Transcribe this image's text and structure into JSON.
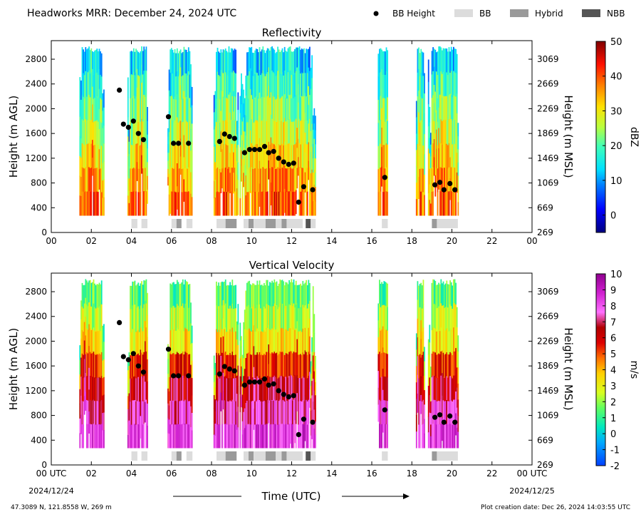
{
  "header": {
    "title": "Headworks MRR:  December 24, 2024 UTC",
    "legend": [
      {
        "label": "BB Height",
        "kind": "dot",
        "color": "#000000"
      },
      {
        "label": "BB",
        "kind": "swatch",
        "color": "#dcdcdc"
      },
      {
        "label": "Hybrid",
        "kind": "swatch",
        "color": "#9a9a9a"
      },
      {
        "label": "NBB",
        "kind": "swatch",
        "color": "#555555"
      }
    ]
  },
  "footer": {
    "location": "47.3089 N, 121.8558 W, 269 m",
    "created": "Plot creation date: Dec 26, 2024 14:03:55 UTC",
    "xlabel": "Time (UTC)",
    "start_date": "2024/12/24",
    "end_date": "2024/12/25"
  },
  "chart_data": [
    {
      "type": "heatmap",
      "title": "Reflectivity",
      "ylabel": "Height (m AGL)",
      "ylabel_right": "Height (m MSL)",
      "xlim": [
        0,
        24
      ],
      "ylim": [
        0,
        3100
      ],
      "x_ticks": [
        "00",
        "02",
        "04",
        "06",
        "08",
        "10",
        "12",
        "14",
        "16",
        "18",
        "20",
        "22",
        "00"
      ],
      "y_ticks": [
        0,
        400,
        800,
        1200,
        1600,
        2000,
        2400,
        2800
      ],
      "y_ticks_right": [
        269,
        669,
        1069,
        1469,
        1869,
        2269,
        2669,
        3069
      ],
      "colorbar": {
        "label": "dBZ",
        "min": -5,
        "max": 50,
        "ticks": [
          0,
          10,
          20,
          30,
          40,
          50
        ]
      },
      "echo_periods": [
        [
          1.4,
          2.6
        ],
        [
          3.8,
          4.8
        ],
        [
          5.8,
          7.0
        ],
        [
          8.1,
          9.3
        ],
        [
          9.4,
          13.2
        ],
        [
          16.3,
          16.8
        ],
        [
          18.2,
          18.6
        ],
        [
          18.8,
          20.3
        ]
      ],
      "bb_height": [
        {
          "x": 3.4,
          "y": 2300
        },
        {
          "x": 3.6,
          "y": 1750
        },
        {
          "x": 3.85,
          "y": 1700
        },
        {
          "x": 4.1,
          "y": 1800
        },
        {
          "x": 4.35,
          "y": 1600
        },
        {
          "x": 4.6,
          "y": 1500
        },
        {
          "x": 5.85,
          "y": 1870
        },
        {
          "x": 6.1,
          "y": 1440
        },
        {
          "x": 6.35,
          "y": 1440
        },
        {
          "x": 6.85,
          "y": 1440
        },
        {
          "x": 8.4,
          "y": 1470
        },
        {
          "x": 8.65,
          "y": 1590
        },
        {
          "x": 8.9,
          "y": 1550
        },
        {
          "x": 9.15,
          "y": 1520
        },
        {
          "x": 9.65,
          "y": 1290
        },
        {
          "x": 9.9,
          "y": 1340
        },
        {
          "x": 10.15,
          "y": 1340
        },
        {
          "x": 10.4,
          "y": 1340
        },
        {
          "x": 10.65,
          "y": 1390
        },
        {
          "x": 10.85,
          "y": 1290
        },
        {
          "x": 11.1,
          "y": 1310
        },
        {
          "x": 11.35,
          "y": 1200
        },
        {
          "x": 11.6,
          "y": 1140
        },
        {
          "x": 11.85,
          "y": 1100
        },
        {
          "x": 12.1,
          "y": 1120
        },
        {
          "x": 12.35,
          "y": 490
        },
        {
          "x": 12.6,
          "y": 740
        },
        {
          "x": 13.05,
          "y": 690
        },
        {
          "x": 16.65,
          "y": 890
        },
        {
          "x": 19.15,
          "y": 770
        },
        {
          "x": 19.4,
          "y": 810
        },
        {
          "x": 19.6,
          "y": 690
        },
        {
          "x": 19.9,
          "y": 790
        },
        {
          "x": 20.15,
          "y": 690
        }
      ],
      "bb_type": [
        {
          "start": 4.0,
          "end": 4.3,
          "kind": "BB"
        },
        {
          "start": 4.5,
          "end": 4.8,
          "kind": "BB"
        },
        {
          "start": 6.0,
          "end": 6.25,
          "kind": "BB"
        },
        {
          "start": 6.25,
          "end": 6.5,
          "kind": "Hybrid"
        },
        {
          "start": 6.75,
          "end": 7.05,
          "kind": "BB"
        },
        {
          "start": 8.25,
          "end": 8.7,
          "kind": "BB"
        },
        {
          "start": 8.7,
          "end": 9.25,
          "kind": "Hybrid"
        },
        {
          "start": 9.6,
          "end": 9.85,
          "kind": "BB"
        },
        {
          "start": 9.85,
          "end": 10.1,
          "kind": "Hybrid"
        },
        {
          "start": 10.1,
          "end": 10.7,
          "kind": "BB"
        },
        {
          "start": 10.7,
          "end": 11.2,
          "kind": "Hybrid"
        },
        {
          "start": 11.2,
          "end": 11.5,
          "kind": "BB"
        },
        {
          "start": 11.5,
          "end": 11.75,
          "kind": "Hybrid"
        },
        {
          "start": 11.75,
          "end": 12.55,
          "kind": "BB"
        },
        {
          "start": 12.7,
          "end": 12.95,
          "kind": "NBB"
        },
        {
          "start": 12.95,
          "end": 13.2,
          "kind": "BB"
        },
        {
          "start": 16.5,
          "end": 16.8,
          "kind": "BB"
        },
        {
          "start": 19.0,
          "end": 19.25,
          "kind": "Hybrid"
        },
        {
          "start": 19.25,
          "end": 20.3,
          "kind": "BB"
        }
      ]
    },
    {
      "type": "heatmap",
      "title": "Vertical Velocity",
      "ylabel": "Height (m AGL)",
      "ylabel_right": "Height (m MSL)",
      "xlim": [
        0,
        24
      ],
      "ylim": [
        0,
        3100
      ],
      "x_ticks": [
        "00 UTC",
        "02",
        "04",
        "06",
        "08",
        "10",
        "12",
        "14",
        "16",
        "18",
        "20",
        "22",
        "00 UTC"
      ],
      "y_ticks": [
        0,
        400,
        800,
        1200,
        1600,
        2000,
        2400,
        2800
      ],
      "y_ticks_right": [
        269,
        669,
        1069,
        1469,
        1869,
        2269,
        2669,
        3069
      ],
      "colorbar": {
        "label": "m/s",
        "min": -2,
        "max": 10,
        "ticks": [
          -2,
          -1,
          0,
          1,
          2,
          3,
          4,
          5,
          6,
          7,
          8,
          9,
          10
        ]
      },
      "echo_periods": [
        [
          1.4,
          2.6
        ],
        [
          3.8,
          4.8
        ],
        [
          5.8,
          7.0
        ],
        [
          8.1,
          9.3
        ],
        [
          9.4,
          13.2
        ],
        [
          16.3,
          16.8
        ],
        [
          18.2,
          18.6
        ],
        [
          18.8,
          20.3
        ]
      ],
      "bb_height": [
        {
          "x": 3.4,
          "y": 2300
        },
        {
          "x": 3.6,
          "y": 1750
        },
        {
          "x": 3.85,
          "y": 1700
        },
        {
          "x": 4.1,
          "y": 1800
        },
        {
          "x": 4.35,
          "y": 1600
        },
        {
          "x": 4.6,
          "y": 1500
        },
        {
          "x": 5.85,
          "y": 1870
        },
        {
          "x": 6.1,
          "y": 1440
        },
        {
          "x": 6.35,
          "y": 1440
        },
        {
          "x": 6.85,
          "y": 1440
        },
        {
          "x": 8.4,
          "y": 1470
        },
        {
          "x": 8.65,
          "y": 1590
        },
        {
          "x": 8.9,
          "y": 1550
        },
        {
          "x": 9.15,
          "y": 1520
        },
        {
          "x": 9.65,
          "y": 1290
        },
        {
          "x": 9.9,
          "y": 1340
        },
        {
          "x": 10.15,
          "y": 1340
        },
        {
          "x": 10.4,
          "y": 1340
        },
        {
          "x": 10.65,
          "y": 1390
        },
        {
          "x": 10.85,
          "y": 1290
        },
        {
          "x": 11.1,
          "y": 1310
        },
        {
          "x": 11.35,
          "y": 1200
        },
        {
          "x": 11.6,
          "y": 1140
        },
        {
          "x": 11.85,
          "y": 1100
        },
        {
          "x": 12.1,
          "y": 1120
        },
        {
          "x": 12.35,
          "y": 490
        },
        {
          "x": 12.6,
          "y": 740
        },
        {
          "x": 13.05,
          "y": 690
        },
        {
          "x": 16.65,
          "y": 890
        },
        {
          "x": 19.15,
          "y": 770
        },
        {
          "x": 19.4,
          "y": 810
        },
        {
          "x": 19.6,
          "y": 690
        },
        {
          "x": 19.9,
          "y": 790
        },
        {
          "x": 20.15,
          "y": 690
        }
      ],
      "bb_type": [
        {
          "start": 4.0,
          "end": 4.3,
          "kind": "BB"
        },
        {
          "start": 4.5,
          "end": 4.8,
          "kind": "BB"
        },
        {
          "start": 6.0,
          "end": 6.25,
          "kind": "BB"
        },
        {
          "start": 6.25,
          "end": 6.5,
          "kind": "Hybrid"
        },
        {
          "start": 6.75,
          "end": 7.05,
          "kind": "BB"
        },
        {
          "start": 8.25,
          "end": 8.7,
          "kind": "BB"
        },
        {
          "start": 8.7,
          "end": 9.25,
          "kind": "Hybrid"
        },
        {
          "start": 9.6,
          "end": 9.85,
          "kind": "BB"
        },
        {
          "start": 9.85,
          "end": 10.1,
          "kind": "Hybrid"
        },
        {
          "start": 10.1,
          "end": 10.7,
          "kind": "BB"
        },
        {
          "start": 10.7,
          "end": 11.2,
          "kind": "Hybrid"
        },
        {
          "start": 11.2,
          "end": 11.5,
          "kind": "BB"
        },
        {
          "start": 11.5,
          "end": 11.75,
          "kind": "Hybrid"
        },
        {
          "start": 11.75,
          "end": 12.55,
          "kind": "BB"
        },
        {
          "start": 12.7,
          "end": 12.95,
          "kind": "NBB"
        },
        {
          "start": 12.95,
          "end": 13.2,
          "kind": "BB"
        },
        {
          "start": 16.5,
          "end": 16.8,
          "kind": "BB"
        },
        {
          "start": 19.0,
          "end": 19.25,
          "kind": "Hybrid"
        },
        {
          "start": 19.25,
          "end": 20.3,
          "kind": "BB"
        }
      ]
    }
  ]
}
